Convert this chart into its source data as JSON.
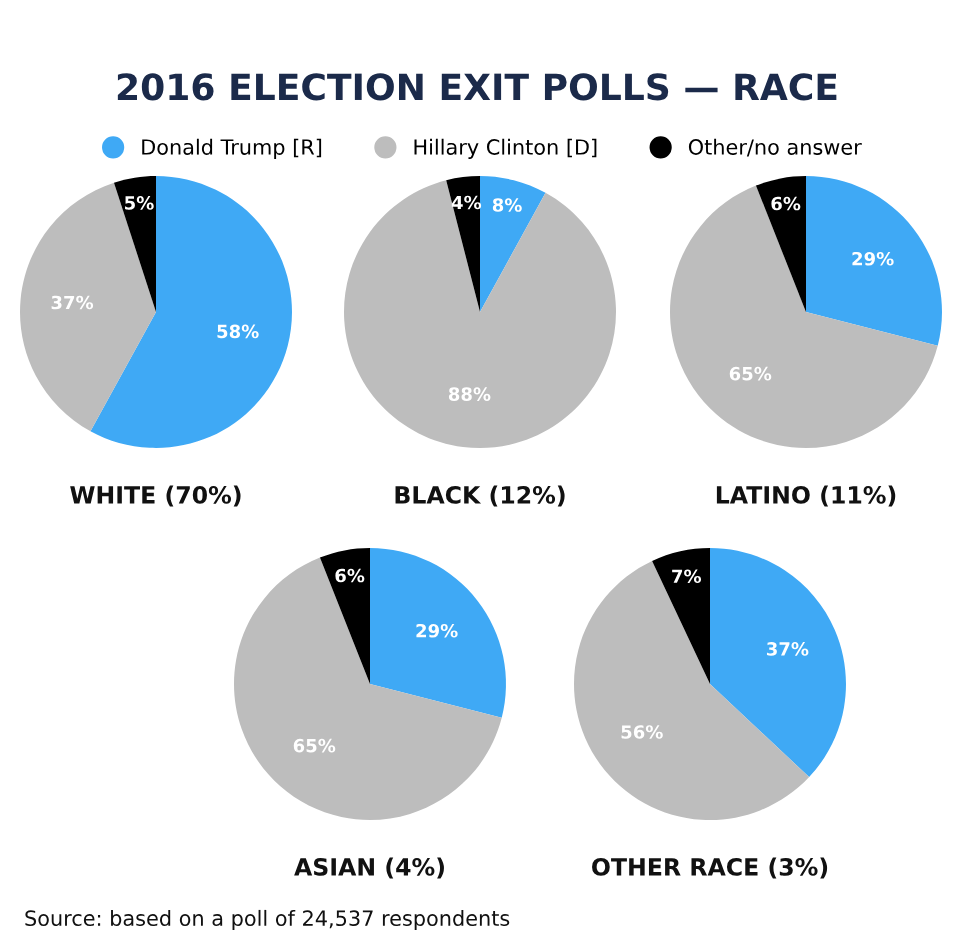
{
  "chart_data": [
    {
      "type": "pie",
      "title": "2016 ELECTION EXIT POLLS — RACE",
      "legend": "top",
      "xlabel": "WHITE (70%)",
      "categories": [
        "Donald Trump [R]",
        "Hillary Clinton [D]",
        "Other/no answer"
      ],
      "values": [
        58,
        37,
        5
      ],
      "colors": [
        "#3fa9f5",
        "#bdbdbd",
        "#000000"
      ],
      "value_labels": [
        "58%",
        "37%",
        "5%"
      ]
    },
    {
      "type": "pie",
      "xlabel": "BLACK (12%)",
      "categories": [
        null,
        null,
        null
      ],
      "values": [
        8,
        88,
        4
      ],
      "colors": [
        "#3fa9f5",
        "#bdbdbd",
        "#000000"
      ],
      "value_labels": [
        "8%",
        "88%",
        "4%"
      ]
    },
    {
      "type": "pie",
      "xlabel": "LATINO (11%)",
      "categories": [
        null,
        null,
        null
      ],
      "values": [
        29,
        65,
        6
      ],
      "colors": [
        "#3fa9f5",
        "#bdbdbd",
        "#000000"
      ],
      "value_labels": [
        "29%",
        "65%",
        "6%"
      ]
    },
    {
      "type": "pie",
      "xlabel": "ASIAN (4%)",
      "categories": [
        null,
        null,
        null
      ],
      "values": [
        29,
        65,
        6
      ],
      "colors": [
        "#3fa9f5",
        "#bdbdbd",
        "#000000"
      ],
      "value_labels": [
        "29%",
        "65%",
        "6%"
      ]
    },
    {
      "type": "pie",
      "xlabel": "OTHER RACE (3%)",
      "categories": [
        null,
        null,
        null
      ],
      "values": [
        37,
        56,
        7
      ],
      "colors": [
        "#3fa9f5",
        "#bdbdbd",
        "#000000"
      ],
      "value_labels": [
        "37%",
        "56%",
        "7%"
      ],
      "annotations": [
        "Source: based on a poll of 24,537 respondents"
      ]
    }
  ]
}
